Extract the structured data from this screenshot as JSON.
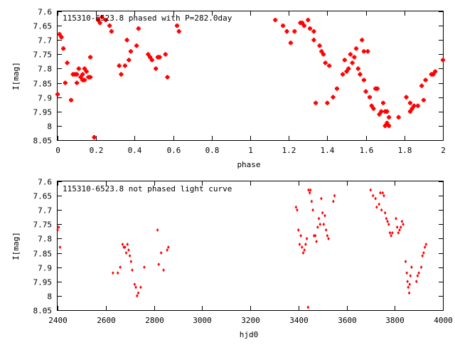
{
  "chart_data": [
    {
      "type": "scatter",
      "title": "115310-6523.8 phased with P=282.0day",
      "xlabel": "phase",
      "ylabel": "I[mag]",
      "xlim": [
        0,
        2
      ],
      "ylim": [
        7.6,
        8.05
      ],
      "y_inverted": true,
      "xticks": [
        "0",
        "0.2",
        "0.4",
        "0.6",
        "0.8",
        "1",
        "1.2",
        "1.4",
        "1.6",
        "1.8",
        "2"
      ],
      "yticks": [
        "7.6",
        "7.65",
        "7.7",
        "7.75",
        "7.8",
        "7.85",
        "7.9",
        "7.95",
        "8",
        "8.05"
      ],
      "marker_color": "#ff0000",
      "marker": "cross-large",
      "points": [
        [
          0.0,
          7.89
        ],
        [
          0.01,
          7.68
        ],
        [
          0.02,
          7.69
        ],
        [
          0.03,
          7.73
        ],
        [
          0.04,
          7.85
        ],
        [
          0.05,
          7.78
        ],
        [
          0.07,
          7.91
        ],
        [
          0.08,
          7.82
        ],
        [
          0.09,
          7.82
        ],
        [
          0.1,
          7.82
        ],
        [
          0.1,
          7.85
        ],
        [
          0.11,
          7.8
        ],
        [
          0.12,
          7.83
        ],
        [
          0.13,
          7.84
        ],
        [
          0.13,
          7.82
        ],
        [
          0.14,
          7.8
        ],
        [
          0.14,
          7.84
        ],
        [
          0.15,
          7.81
        ],
        [
          0.16,
          7.83
        ],
        [
          0.17,
          7.76
        ],
        [
          0.17,
          7.83
        ],
        [
          0.19,
          8.04
        ],
        [
          0.21,
          7.63
        ],
        [
          0.22,
          7.64
        ],
        [
          0.23,
          7.62
        ],
        [
          0.25,
          7.63
        ],
        [
          0.27,
          7.65
        ],
        [
          0.28,
          7.67
        ],
        [
          0.32,
          7.79
        ],
        [
          0.33,
          7.82
        ],
        [
          0.35,
          7.79
        ],
        [
          0.36,
          7.7
        ],
        [
          0.37,
          7.77
        ],
        [
          0.38,
          7.74
        ],
        [
          0.41,
          7.72
        ],
        [
          0.42,
          7.66
        ],
        [
          0.47,
          7.75
        ],
        [
          0.48,
          7.76
        ],
        [
          0.49,
          7.77
        ],
        [
          0.51,
          7.8
        ],
        [
          0.52,
          7.76
        ],
        [
          0.53,
          7.76
        ],
        [
          0.56,
          7.75
        ],
        [
          0.57,
          7.83
        ],
        [
          0.62,
          7.65
        ],
        [
          0.63,
          7.67
        ],
        [
          1.13,
          7.63
        ],
        [
          1.17,
          7.65
        ],
        [
          1.19,
          7.67
        ],
        [
          1.21,
          7.71
        ],
        [
          1.23,
          7.67
        ],
        [
          1.26,
          7.64
        ],
        [
          1.27,
          7.64
        ],
        [
          1.28,
          7.65
        ],
        [
          1.3,
          7.63
        ],
        [
          1.31,
          7.66
        ],
        [
          1.33,
          7.67
        ],
        [
          1.33,
          7.7
        ],
        [
          1.34,
          7.92
        ],
        [
          1.36,
          7.72
        ],
        [
          1.37,
          7.74
        ],
        [
          1.38,
          7.75
        ],
        [
          1.39,
          7.78
        ],
        [
          1.4,
          7.92
        ],
        [
          1.41,
          7.79
        ],
        [
          1.43,
          7.9
        ],
        [
          1.45,
          7.87
        ],
        [
          1.48,
          7.82
        ],
        [
          1.49,
          7.77
        ],
        [
          1.5,
          7.81
        ],
        [
          1.51,
          7.8
        ],
        [
          1.52,
          7.75
        ],
        [
          1.53,
          7.78
        ],
        [
          1.54,
          7.76
        ],
        [
          1.55,
          7.73
        ],
        [
          1.56,
          7.8
        ],
        [
          1.57,
          7.82
        ],
        [
          1.58,
          7.7
        ],
        [
          1.59,
          7.74
        ],
        [
          1.59,
          7.84
        ],
        [
          1.6,
          7.88
        ],
        [
          1.61,
          7.74
        ],
        [
          1.62,
          7.9
        ],
        [
          1.63,
          7.93
        ],
        [
          1.64,
          7.94
        ],
        [
          1.65,
          7.87
        ],
        [
          1.66,
          7.87
        ],
        [
          1.67,
          7.96
        ],
        [
          1.68,
          7.95
        ],
        [
          1.69,
          7.92
        ],
        [
          1.7,
          7.95
        ],
        [
          1.7,
          8.0
        ],
        [
          1.71,
          7.95
        ],
        [
          1.71,
          7.99
        ],
        [
          1.72,
          8.0
        ],
        [
          1.72,
          7.97
        ],
        [
          1.77,
          7.97
        ],
        [
          1.81,
          7.9
        ],
        [
          1.83,
          7.95
        ],
        [
          1.83,
          7.92
        ],
        [
          1.84,
          7.94
        ],
        [
          1.85,
          7.93
        ],
        [
          1.87,
          7.93
        ],
        [
          1.89,
          7.86
        ],
        [
          1.9,
          7.91
        ],
        [
          1.91,
          7.84
        ],
        [
          1.94,
          7.82
        ],
        [
          1.95,
          7.82
        ],
        [
          1.96,
          7.81
        ],
        [
          2.0,
          7.77
        ]
      ]
    },
    {
      "type": "scatter",
      "title": "115310-6523.8 not phased light curve",
      "xlabel": "hjd0",
      "ylabel": "I[mag]",
      "xlim": [
        2400,
        4000
      ],
      "ylim": [
        7.6,
        8.05
      ],
      "y_inverted": true,
      "xticks": [
        "2400",
        "2600",
        "2800",
        "3000",
        "3200",
        "3400",
        "3600",
        "3800",
        "4000"
      ],
      "yticks": [
        "7.6",
        "7.65",
        "7.7",
        "7.75",
        "7.8",
        "7.85",
        "7.9",
        "7.95",
        "8",
        "8.05"
      ],
      "marker_color": "#ff0000",
      "marker": "diamond-small",
      "points": [
        [
          2400,
          7.77
        ],
        [
          2405,
          7.76
        ],
        [
          2410,
          7.83
        ],
        [
          2630,
          7.92
        ],
        [
          2650,
          7.92
        ],
        [
          2660,
          7.9
        ],
        [
          2670,
          7.82
        ],
        [
          2675,
          7.83
        ],
        [
          2680,
          7.83
        ],
        [
          2685,
          7.85
        ],
        [
          2690,
          7.82
        ],
        [
          2695,
          7.84
        ],
        [
          2700,
          7.86
        ],
        [
          2705,
          7.88
        ],
        [
          2710,
          7.91
        ],
        [
          2720,
          7.96
        ],
        [
          2725,
          7.97
        ],
        [
          2730,
          8.0
        ],
        [
          2735,
          7.99
        ],
        [
          2745,
          7.97
        ],
        [
          2760,
          7.9
        ],
        [
          2815,
          7.77
        ],
        [
          2820,
          7.89
        ],
        [
          2830,
          7.85
        ],
        [
          2840,
          7.91
        ],
        [
          2855,
          7.84
        ],
        [
          2860,
          7.83
        ],
        [
          3390,
          7.69
        ],
        [
          3395,
          7.7
        ],
        [
          3400,
          7.77
        ],
        [
          3405,
          7.82
        ],
        [
          3410,
          7.79
        ],
        [
          3415,
          7.83
        ],
        [
          3420,
          7.85
        ],
        [
          3425,
          7.84
        ],
        [
          3430,
          7.82
        ],
        [
          3435,
          7.8
        ],
        [
          3440,
          8.04
        ],
        [
          3442,
          7.63
        ],
        [
          3447,
          7.64
        ],
        [
          3450,
          7.63
        ],
        [
          3455,
          7.67
        ],
        [
          3460,
          7.7
        ],
        [
          3465,
          7.79
        ],
        [
          3470,
          7.79
        ],
        [
          3475,
          7.81
        ],
        [
          3480,
          7.76
        ],
        [
          3485,
          7.73
        ],
        [
          3490,
          7.75
        ],
        [
          3495,
          7.66
        ],
        [
          3500,
          7.71
        ],
        [
          3505,
          7.75
        ],
        [
          3510,
          7.72
        ],
        [
          3515,
          7.77
        ],
        [
          3520,
          7.79
        ],
        [
          3525,
          7.8
        ],
        [
          3545,
          7.67
        ],
        [
          3550,
          7.65
        ],
        [
          3700,
          7.63
        ],
        [
          3710,
          7.65
        ],
        [
          3720,
          7.66
        ],
        [
          3725,
          7.69
        ],
        [
          3735,
          7.68
        ],
        [
          3740,
          7.64
        ],
        [
          3745,
          7.7
        ],
        [
          3750,
          7.64
        ],
        [
          3755,
          7.65
        ],
        [
          3760,
          7.71
        ],
        [
          3765,
          7.73
        ],
        [
          3770,
          7.74
        ],
        [
          3775,
          7.75
        ],
        [
          3780,
          7.78
        ],
        [
          3785,
          7.79
        ],
        [
          3790,
          7.78
        ],
        [
          3805,
          7.73
        ],
        [
          3810,
          7.76
        ],
        [
          3815,
          7.78
        ],
        [
          3820,
          7.77
        ],
        [
          3825,
          7.76
        ],
        [
          3830,
          7.74
        ],
        [
          3835,
          7.75
        ],
        [
          3845,
          7.88
        ],
        [
          3850,
          7.92
        ],
        [
          3853,
          7.95
        ],
        [
          3856,
          7.97
        ],
        [
          3860,
          7.99
        ],
        [
          3862,
          7.96
        ],
        [
          3865,
          7.93
        ],
        [
          3870,
          7.9
        ],
        [
          3890,
          7.95
        ],
        [
          3895,
          7.93
        ],
        [
          3900,
          7.92
        ],
        [
          3910,
          7.9
        ],
        [
          3915,
          7.86
        ],
        [
          3920,
          7.85
        ],
        [
          3925,
          7.83
        ],
        [
          3930,
          7.82
        ]
      ]
    }
  ]
}
